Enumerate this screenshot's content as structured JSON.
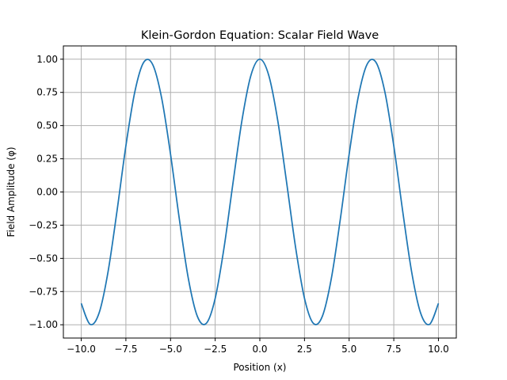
{
  "chart_data": {
    "type": "line",
    "title": "Klein-Gordon Equation: Scalar Field Wave",
    "xlabel": "Position (x)",
    "ylabel": "Field Amplitude (φ)",
    "xlim": [
      -11.0,
      11.0
    ],
    "ylim": [
      -1.1,
      1.1
    ],
    "grid": true,
    "x_ticks": [
      -10.0,
      -7.5,
      -5.0,
      -2.5,
      0.0,
      2.5,
      5.0,
      7.5,
      10.0
    ],
    "x_tick_labels": [
      "−10.0",
      "−7.5",
      "−5.0",
      "−2.5",
      "0.0",
      "2.5",
      "5.0",
      "7.5",
      "10.0"
    ],
    "y_ticks": [
      -1.0,
      -0.75,
      -0.5,
      -0.25,
      0.0,
      0.25,
      0.5,
      0.75,
      1.0
    ],
    "y_tick_labels": [
      "−1.00",
      "−0.75",
      "−0.50",
      "−0.25",
      "0.00",
      "0.25",
      "0.50",
      "0.75",
      "1.00"
    ],
    "series": [
      {
        "color": "#1f77b4",
        "x": [
          -10.0,
          -9.5,
          -9.0,
          -8.5,
          -8.0,
          -7.5,
          -7.0,
          -6.5,
          -6.0,
          -5.5,
          -5.0,
          -4.5,
          -4.0,
          -3.5,
          -3.0,
          -2.5,
          -2.0,
          -1.5,
          -1.0,
          -0.5,
          0.0,
          0.5,
          1.0,
          1.5,
          2.0,
          2.5,
          3.0,
          3.5,
          4.0,
          4.5,
          5.0,
          5.5,
          6.0,
          6.5,
          7.0,
          7.5,
          8.0,
          8.5,
          9.0,
          9.5,
          10.0
        ],
        "y": [
          -0.839,
          -0.997,
          -0.911,
          -0.602,
          -0.146,
          0.347,
          0.754,
          0.977,
          0.96,
          0.709,
          0.284,
          -0.211,
          -0.654,
          -0.936,
          -0.99,
          -0.801,
          -0.416,
          0.071,
          0.54,
          0.878,
          1.0,
          0.878,
          0.54,
          0.071,
          -0.416,
          -0.801,
          -0.99,
          -0.936,
          -0.654,
          -0.211,
          0.284,
          0.709,
          0.96,
          0.977,
          0.754,
          0.347,
          -0.146,
          -0.602,
          -0.911,
          -0.997,
          -0.839
        ]
      }
    ]
  }
}
